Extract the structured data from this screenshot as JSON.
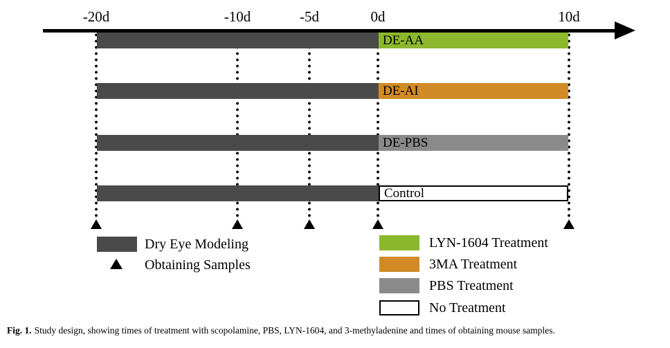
{
  "figure": {
    "timeline": {
      "ticks": [
        {
          "label": "-20d"
        },
        {
          "label": "-10d"
        },
        {
          "label": "-5d"
        },
        {
          "label": "0d"
        },
        {
          "label": "10d"
        }
      ],
      "sample_points": [
        "-20d",
        "-10d",
        "-5d",
        "0d",
        "10d"
      ]
    },
    "rows": [
      {
        "label": "DE-AA",
        "pre_phase": "Dry Eye Modeling",
        "pre_span": "-20d to 0d",
        "post_phase": "LYN-1604 Treatment",
        "post_span": "0d to 10d"
      },
      {
        "label": "DE-AI",
        "pre_phase": "Dry Eye Modeling",
        "pre_span": "-20d to 0d",
        "post_phase": "3MA Treatment",
        "post_span": "0d to 10d"
      },
      {
        "label": "DE-PBS",
        "pre_phase": "Dry Eye Modeling",
        "pre_span": "-20d to 0d",
        "post_phase": "PBS Treatment",
        "post_span": "0d to 10d"
      },
      {
        "label": "Control",
        "pre_phase": "Dry Eye Modeling",
        "pre_span": "-20d to 0d",
        "post_phase": "No Treatment",
        "post_span": "0d to 10d"
      }
    ],
    "legend_left": [
      {
        "marker": "dark-box",
        "label": "Dry Eye Modeling"
      },
      {
        "marker": "triangle",
        "label": "Obtaining Samples"
      }
    ],
    "legend_right": [
      {
        "label": "LYN-1604 Treatment",
        "color": "#8cb82e"
      },
      {
        "label": "3MA Treatment",
        "color": "#d18a26"
      },
      {
        "label": "PBS Treatment",
        "color": "#8a8a8a"
      },
      {
        "label": "No Treatment",
        "color": "#ffffff"
      }
    ],
    "colors": {
      "modeling": "#4a4a4a",
      "lyn1604": "#8cb82e",
      "three_ma": "#d18a26",
      "pbs": "#8a8a8a",
      "no_treatment": "#ffffff",
      "axis": "#000000"
    },
    "caption": {
      "prefix": "Fig. 1.",
      "text": "Study design, showing times of treatment with scopolamine, PBS, LYN-1604, and 3-methyladenine and times of obtaining mouse samples."
    }
  }
}
